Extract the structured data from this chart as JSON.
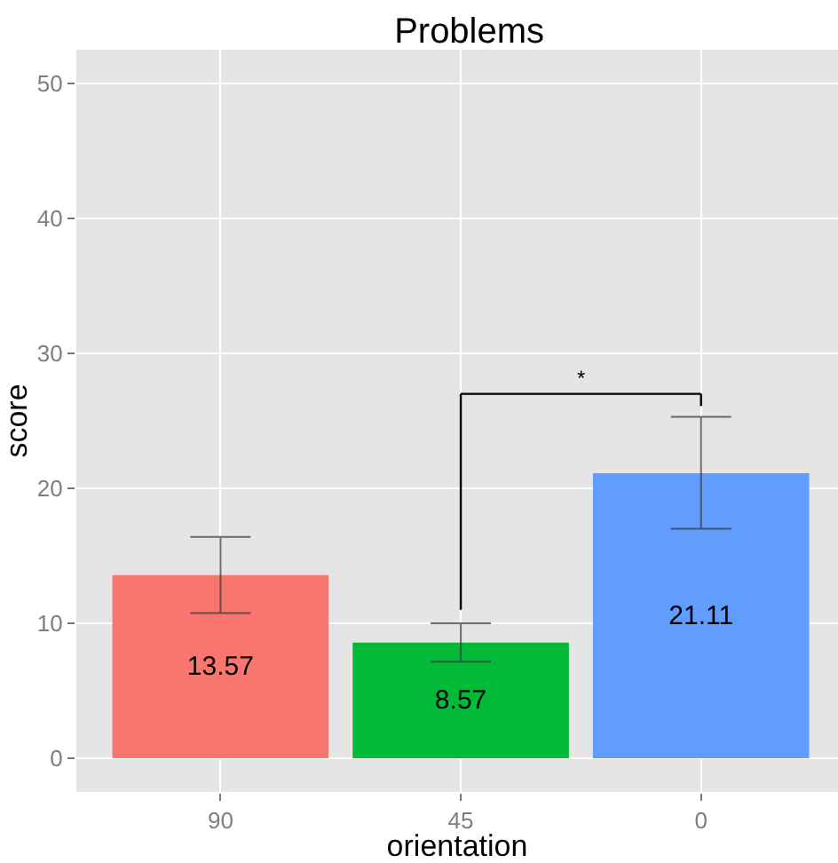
{
  "chart_data": {
    "type": "bar",
    "title": "Problems",
    "xlabel": "orientation",
    "ylabel": "score",
    "categories": [
      "90",
      "45",
      "0"
    ],
    "values": [
      13.57,
      8.57,
      21.11
    ],
    "colors": [
      "#f8766d",
      "#00ba38",
      "#619cff"
    ],
    "errors": [
      [
        10.75,
        16.4
      ],
      [
        7.15,
        10.0
      ],
      [
        17.0,
        25.3
      ]
    ],
    "data_labels": true,
    "ylim": [
      -2.5,
      52.5
    ],
    "yticks": [
      0,
      10,
      20,
      30,
      40,
      50
    ],
    "grid": true,
    "annotations": [
      "*"
    ]
  }
}
